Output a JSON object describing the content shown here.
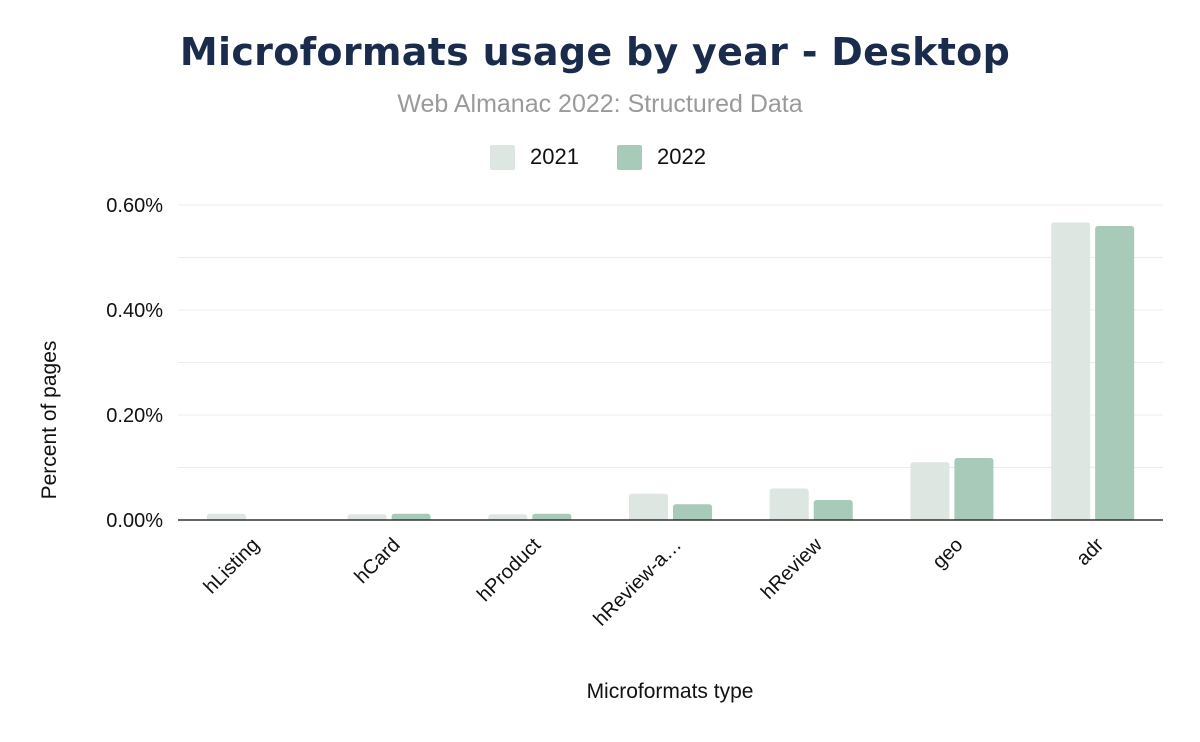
{
  "chart_data": {
    "type": "bar",
    "title": "Microformats usage by year - Desktop",
    "subtitle": "Web Almanac 2022: Structured Data",
    "xlabel": "Microformats type",
    "ylabel": "Percent of pages",
    "categories": [
      "hListing",
      "hCard",
      "hProduct",
      "hReview-a…",
      "hReview",
      "geo",
      "adr"
    ],
    "series": [
      {
        "name": "2021",
        "color": "#dde6e0",
        "values": [
          0.012,
          0.011,
          0.011,
          0.05,
          0.06,
          0.11,
          0.567
        ]
      },
      {
        "name": "2022",
        "color": "#a8cab8",
        "values": [
          0.0,
          0.012,
          0.012,
          0.03,
          0.038,
          0.118,
          0.56
        ]
      }
    ],
    "ylim": [
      0,
      0.6
    ],
    "yticks": [
      0,
      0.2,
      0.4,
      0.6
    ],
    "ytick_labels": [
      "0.00%",
      "0.20%",
      "0.40%",
      "0.60%"
    ],
    "grid": true,
    "legend_position": "top-center"
  }
}
